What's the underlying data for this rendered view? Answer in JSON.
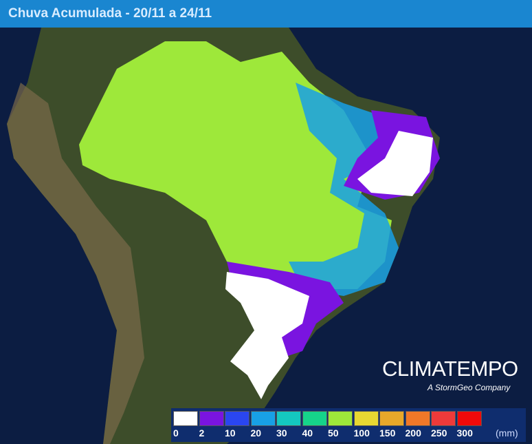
{
  "header": {
    "title": "Chuva Acumulada - 20/11 a 24/11"
  },
  "brand": {
    "name": "CLIMATEMPO",
    "tagline": "A StormGeo Company"
  },
  "legend": {
    "unit": "(mm)",
    "labels": [
      "0",
      "2",
      "10",
      "20",
      "30",
      "40",
      "50",
      "100",
      "150",
      "200",
      "250",
      "300"
    ],
    "colors": [
      "#ffffff",
      "#7a14e0",
      "#2a46f0",
      "#18a0e6",
      "#14c8c0",
      "#16d48a",
      "#9ee83a",
      "#e8d832",
      "#e8a82a",
      "#f07828",
      "#ee3a3a",
      "#f00a0a"
    ]
  }
}
